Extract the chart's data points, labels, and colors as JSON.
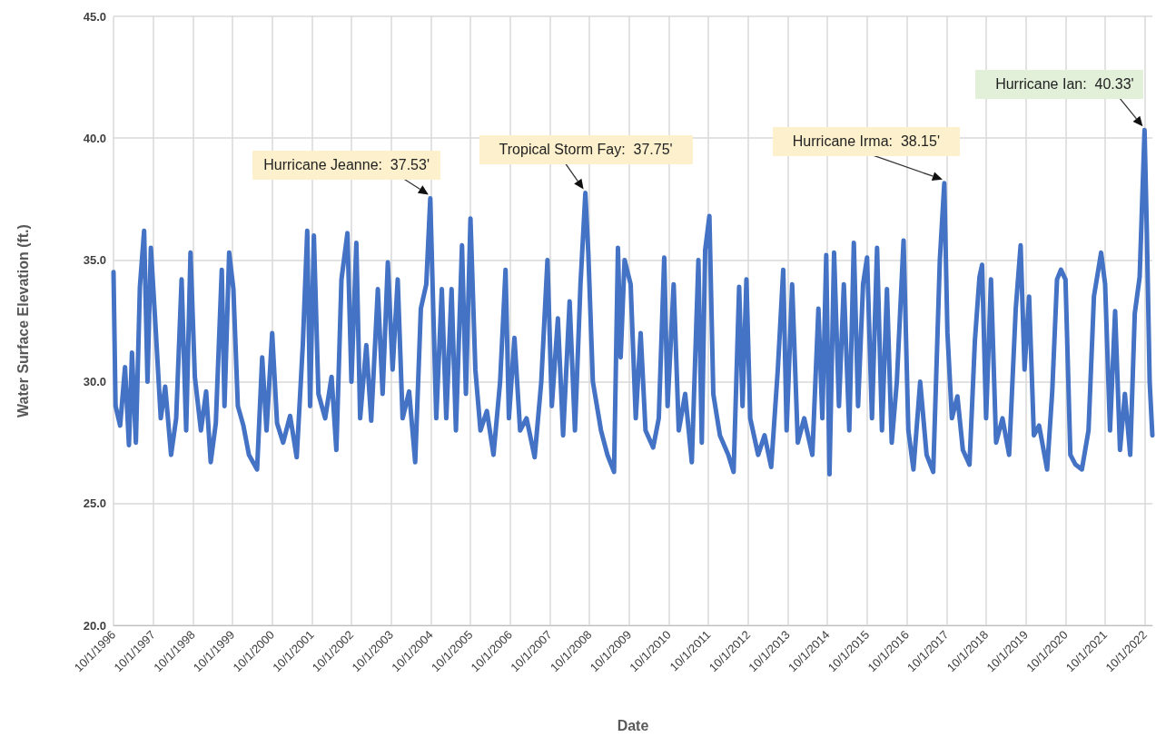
{
  "chart_data": {
    "type": "line",
    "xlabel": "Date",
    "ylabel": "Water Surface Elevation (ft.)",
    "x": [
      "1996-10-01",
      "1996-10-20",
      "1996-12-01",
      "1997-01-15",
      "1997-02-20",
      "1997-03-20",
      "1997-04-25",
      "1997-06-01",
      "1997-07-10",
      "1997-08-10",
      "1997-09-10",
      "1997-10-20",
      "1997-12-10",
      "1998-01-20",
      "1998-03-15",
      "1998-05-01",
      "1998-06-20",
      "1998-08-01",
      "1998-09-10",
      "1998-10-20",
      "1998-12-15",
      "1999-02-01",
      "1999-03-15",
      "1999-05-01",
      "1999-06-25",
      "1999-07-20",
      "1999-09-01",
      "1999-10-10",
      "1999-11-20",
      "2000-01-10",
      "2000-03-01",
      "2000-05-15",
      "2000-07-01",
      "2000-08-10",
      "2000-10-01",
      "2000-11-15",
      "2001-01-10",
      "2001-03-15",
      "2001-05-15",
      "2001-07-10",
      "2001-08-20",
      "2001-09-15",
      "2001-10-20",
      "2001-12-01",
      "2002-02-01",
      "2002-04-01",
      "2002-05-15",
      "2002-07-01",
      "2002-08-25",
      "2002-10-01",
      "2002-11-15",
      "2002-12-20",
      "2003-02-15",
      "2003-04-01",
      "2003-06-01",
      "2003-07-15",
      "2003-09-01",
      "2003-10-15",
      "2003-12-01",
      "2004-01-15",
      "2004-03-15",
      "2004-05-10",
      "2004-07-01",
      "2004-08-20",
      "2004-09-26",
      "2004-10-20",
      "2004-11-20",
      "2005-01-10",
      "2005-02-20",
      "2005-04-10",
      "2005-05-20",
      "2005-07-15",
      "2005-08-20",
      "2005-10-01",
      "2005-11-15",
      "2006-01-01",
      "2006-03-01",
      "2006-05-01",
      "2006-07-01",
      "2006-08-20",
      "2006-09-20",
      "2006-11-10",
      "2007-01-01",
      "2007-03-01",
      "2007-05-15",
      "2007-07-15",
      "2007-09-10",
      "2007-10-20",
      "2007-12-15",
      "2008-02-01",
      "2008-04-01",
      "2008-05-20",
      "2008-07-10",
      "2008-08-24",
      "2008-09-20",
      "2008-11-01",
      "2009-01-15",
      "2009-03-15",
      "2009-05-15",
      "2009-06-20",
      "2009-07-15",
      "2009-08-20",
      "2009-10-15",
      "2009-12-01",
      "2010-01-15",
      "2010-03-01",
      "2010-05-10",
      "2010-07-01",
      "2010-08-20",
      "2010-09-20",
      "2010-11-15",
      "2011-01-01",
      "2011-03-01",
      "2011-05-01",
      "2011-07-01",
      "2011-08-01",
      "2011-09-01",
      "2011-10-10",
      "2011-11-15",
      "2012-01-15",
      "2012-04-01",
      "2012-05-20",
      "2012-07-10",
      "2012-08-10",
      "2012-09-15",
      "2012-10-20",
      "2013-01-01",
      "2013-03-01",
      "2013-05-01",
      "2013-07-01",
      "2013-08-20",
      "2013-09-20",
      "2013-11-10",
      "2014-01-01",
      "2014-03-01",
      "2014-05-15",
      "2014-07-10",
      "2014-08-15",
      "2014-09-20",
      "2014-10-20",
      "2014-12-01",
      "2015-01-15",
      "2015-03-01",
      "2015-04-20",
      "2015-06-01",
      "2015-07-10",
      "2015-08-25",
      "2015-10-01",
      "2015-11-15",
      "2016-01-01",
      "2016-02-15",
      "2016-04-01",
      "2016-05-15",
      "2016-07-01",
      "2016-09-01",
      "2016-10-15",
      "2016-12-01",
      "2017-02-01",
      "2017-04-01",
      "2017-06-01",
      "2017-08-01",
      "2017-09-11",
      "2017-10-10",
      "2017-11-20",
      "2018-01-10",
      "2018-03-01",
      "2018-05-01",
      "2018-06-20",
      "2018-08-01",
      "2018-08-25",
      "2018-10-01",
      "2018-11-15",
      "2019-01-01",
      "2019-03-01",
      "2019-05-01",
      "2019-07-01",
      "2019-08-15",
      "2019-09-20",
      "2019-11-01",
      "2019-12-15",
      "2020-02-01",
      "2020-04-15",
      "2020-06-01",
      "2020-07-15",
      "2020-08-20",
      "2020-10-01",
      "2020-11-15",
      "2021-01-01",
      "2021-03-01",
      "2021-05-01",
      "2021-06-20",
      "2021-08-25",
      "2021-10-01",
      "2021-11-15",
      "2022-01-01",
      "2022-02-15",
      "2022-04-01",
      "2022-05-20",
      "2022-07-01",
      "2022-08-15",
      "2022-09-29",
      "2022-10-20",
      "2022-11-15",
      "2022-12-10"
    ],
    "series": [
      {
        "color": "#4472c4",
        "values": [
          34.5,
          29.0,
          28.2,
          30.6,
          27.4,
          31.2,
          27.5,
          33.9,
          36.2,
          30.0,
          35.5,
          32.5,
          28.5,
          29.8,
          27.0,
          28.5,
          34.2,
          28.0,
          35.3,
          30.2,
          28.0,
          29.6,
          26.7,
          28.3,
          34.6,
          29.0,
          35.3,
          33.8,
          29.0,
          28.2,
          27.0,
          26.4,
          31.0,
          28.0,
          32.0,
          28.3,
          27.5,
          28.6,
          26.9,
          31.5,
          36.2,
          29.0,
          36.0,
          29.5,
          28.5,
          30.2,
          27.2,
          34.2,
          36.1,
          30.0,
          35.7,
          28.5,
          31.5,
          28.4,
          33.8,
          29.5,
          34.9,
          30.5,
          34.2,
          28.5,
          29.6,
          26.7,
          33.0,
          34.0,
          37.53,
          33.5,
          28.5,
          33.8,
          28.5,
          33.8,
          28.0,
          35.6,
          29.5,
          36.7,
          30.5,
          28.0,
          28.8,
          27.0,
          30.0,
          34.6,
          28.5,
          31.8,
          28.0,
          28.5,
          26.9,
          30.0,
          35.0,
          29.0,
          32.6,
          27.8,
          33.3,
          28.0,
          34.0,
          37.75,
          35.3,
          30.0,
          28.0,
          27.0,
          26.3,
          35.5,
          31.0,
          35.0,
          34.0,
          28.5,
          32.0,
          28.0,
          27.3,
          28.5,
          35.1,
          29.0,
          34.0,
          28.0,
          29.5,
          26.7,
          35.0,
          27.5,
          35.4,
          36.8,
          29.5,
          27.8,
          27.0,
          26.3,
          33.9,
          29.0,
          34.2,
          28.5,
          27.0,
          27.8,
          26.5,
          30.5,
          34.6,
          28.0,
          34.0,
          27.5,
          28.5,
          27.0,
          33.0,
          28.5,
          35.2,
          26.2,
          35.3,
          29.0,
          34.0,
          28.0,
          35.7,
          29.0,
          34.0,
          35.1,
          28.5,
          35.5,
          28.0,
          33.8,
          27.5,
          30.0,
          35.8,
          28.0,
          26.4,
          30.0,
          27.0,
          26.3,
          35.0,
          38.15,
          32.0,
          28.5,
          29.4,
          27.2,
          26.6,
          31.7,
          34.3,
          34.8,
          28.5,
          34.2,
          27.5,
          28.5,
          27.0,
          33.0,
          35.6,
          30.5,
          33.5,
          27.8,
          28.2,
          26.4,
          29.6,
          34.2,
          34.6,
          34.2,
          27.0,
          26.6,
          26.4,
          28.0,
          33.5,
          35.3,
          34.0,
          28.0,
          32.9,
          27.2,
          29.5,
          27.0,
          32.8,
          34.3,
          40.33,
          36.2,
          30.0,
          27.8
        ]
      }
    ],
    "xlim": [
      "1996-10-01",
      "2022-12-10"
    ],
    "xticks": [
      {
        "value": "1996-10-01",
        "label": "10/1/1996"
      },
      {
        "value": "1997-10-01",
        "label": "10/1/1997"
      },
      {
        "value": "1998-10-01",
        "label": "10/1/1998"
      },
      {
        "value": "1999-10-01",
        "label": "10/1/1999"
      },
      {
        "value": "2000-10-01",
        "label": "10/1/2000"
      },
      {
        "value": "2001-10-01",
        "label": "10/1/2001"
      },
      {
        "value": "2002-10-01",
        "label": "10/1/2002"
      },
      {
        "value": "2003-10-01",
        "label": "10/1/2003"
      },
      {
        "value": "2004-10-01",
        "label": "10/1/2004"
      },
      {
        "value": "2005-10-01",
        "label": "10/1/2005"
      },
      {
        "value": "2006-10-01",
        "label": "10/1/2006"
      },
      {
        "value": "2007-10-01",
        "label": "10/1/2007"
      },
      {
        "value": "2008-10-01",
        "label": "10/1/2008"
      },
      {
        "value": "2009-10-01",
        "label": "10/1/2009"
      },
      {
        "value": "2010-10-01",
        "label": "10/1/2010"
      },
      {
        "value": "2011-10-01",
        "label": "10/1/2011"
      },
      {
        "value": "2012-10-01",
        "label": "10/1/2012"
      },
      {
        "value": "2013-10-01",
        "label": "10/1/2013"
      },
      {
        "value": "2014-10-01",
        "label": "10/1/2014"
      },
      {
        "value": "2015-10-01",
        "label": "10/1/2015"
      },
      {
        "value": "2016-10-01",
        "label": "10/1/2016"
      },
      {
        "value": "2017-10-01",
        "label": "10/1/2017"
      },
      {
        "value": "2018-10-01",
        "label": "10/1/2018"
      },
      {
        "value": "2019-10-01",
        "label": "10/1/2019"
      },
      {
        "value": "2020-10-01",
        "label": "10/1/2020"
      },
      {
        "value": "2021-10-01",
        "label": "10/1/2021"
      },
      {
        "value": "2022-10-01",
        "label": "10/1/2022"
      }
    ],
    "ylim": [
      20,
      45
    ],
    "yticks": [
      {
        "value": 20,
        "label": "20.0"
      },
      {
        "value": 25,
        "label": "25.0"
      },
      {
        "value": 30,
        "label": "30.0"
      },
      {
        "value": 35,
        "label": "35.0"
      },
      {
        "value": 40,
        "label": "40.0"
      },
      {
        "value": 45,
        "label": "45.0"
      }
    ],
    "grid": true,
    "marker": "none",
    "line_style": "solid",
    "annotations": [
      {
        "text": "Hurricane Jeanne:  37.53'",
        "x": "2004-09-26",
        "y": 37.53
      },
      {
        "text": "Tropical Storm Fay:  37.75'",
        "x": "2008-08-24",
        "y": 37.75
      },
      {
        "text": "Hurricane Irma:  38.15'",
        "x": "2017-09-11",
        "y": 38.15
      },
      {
        "text": "Hurricane Ian:  40.33'",
        "x": "2022-09-29",
        "y": 40.33
      }
    ]
  }
}
